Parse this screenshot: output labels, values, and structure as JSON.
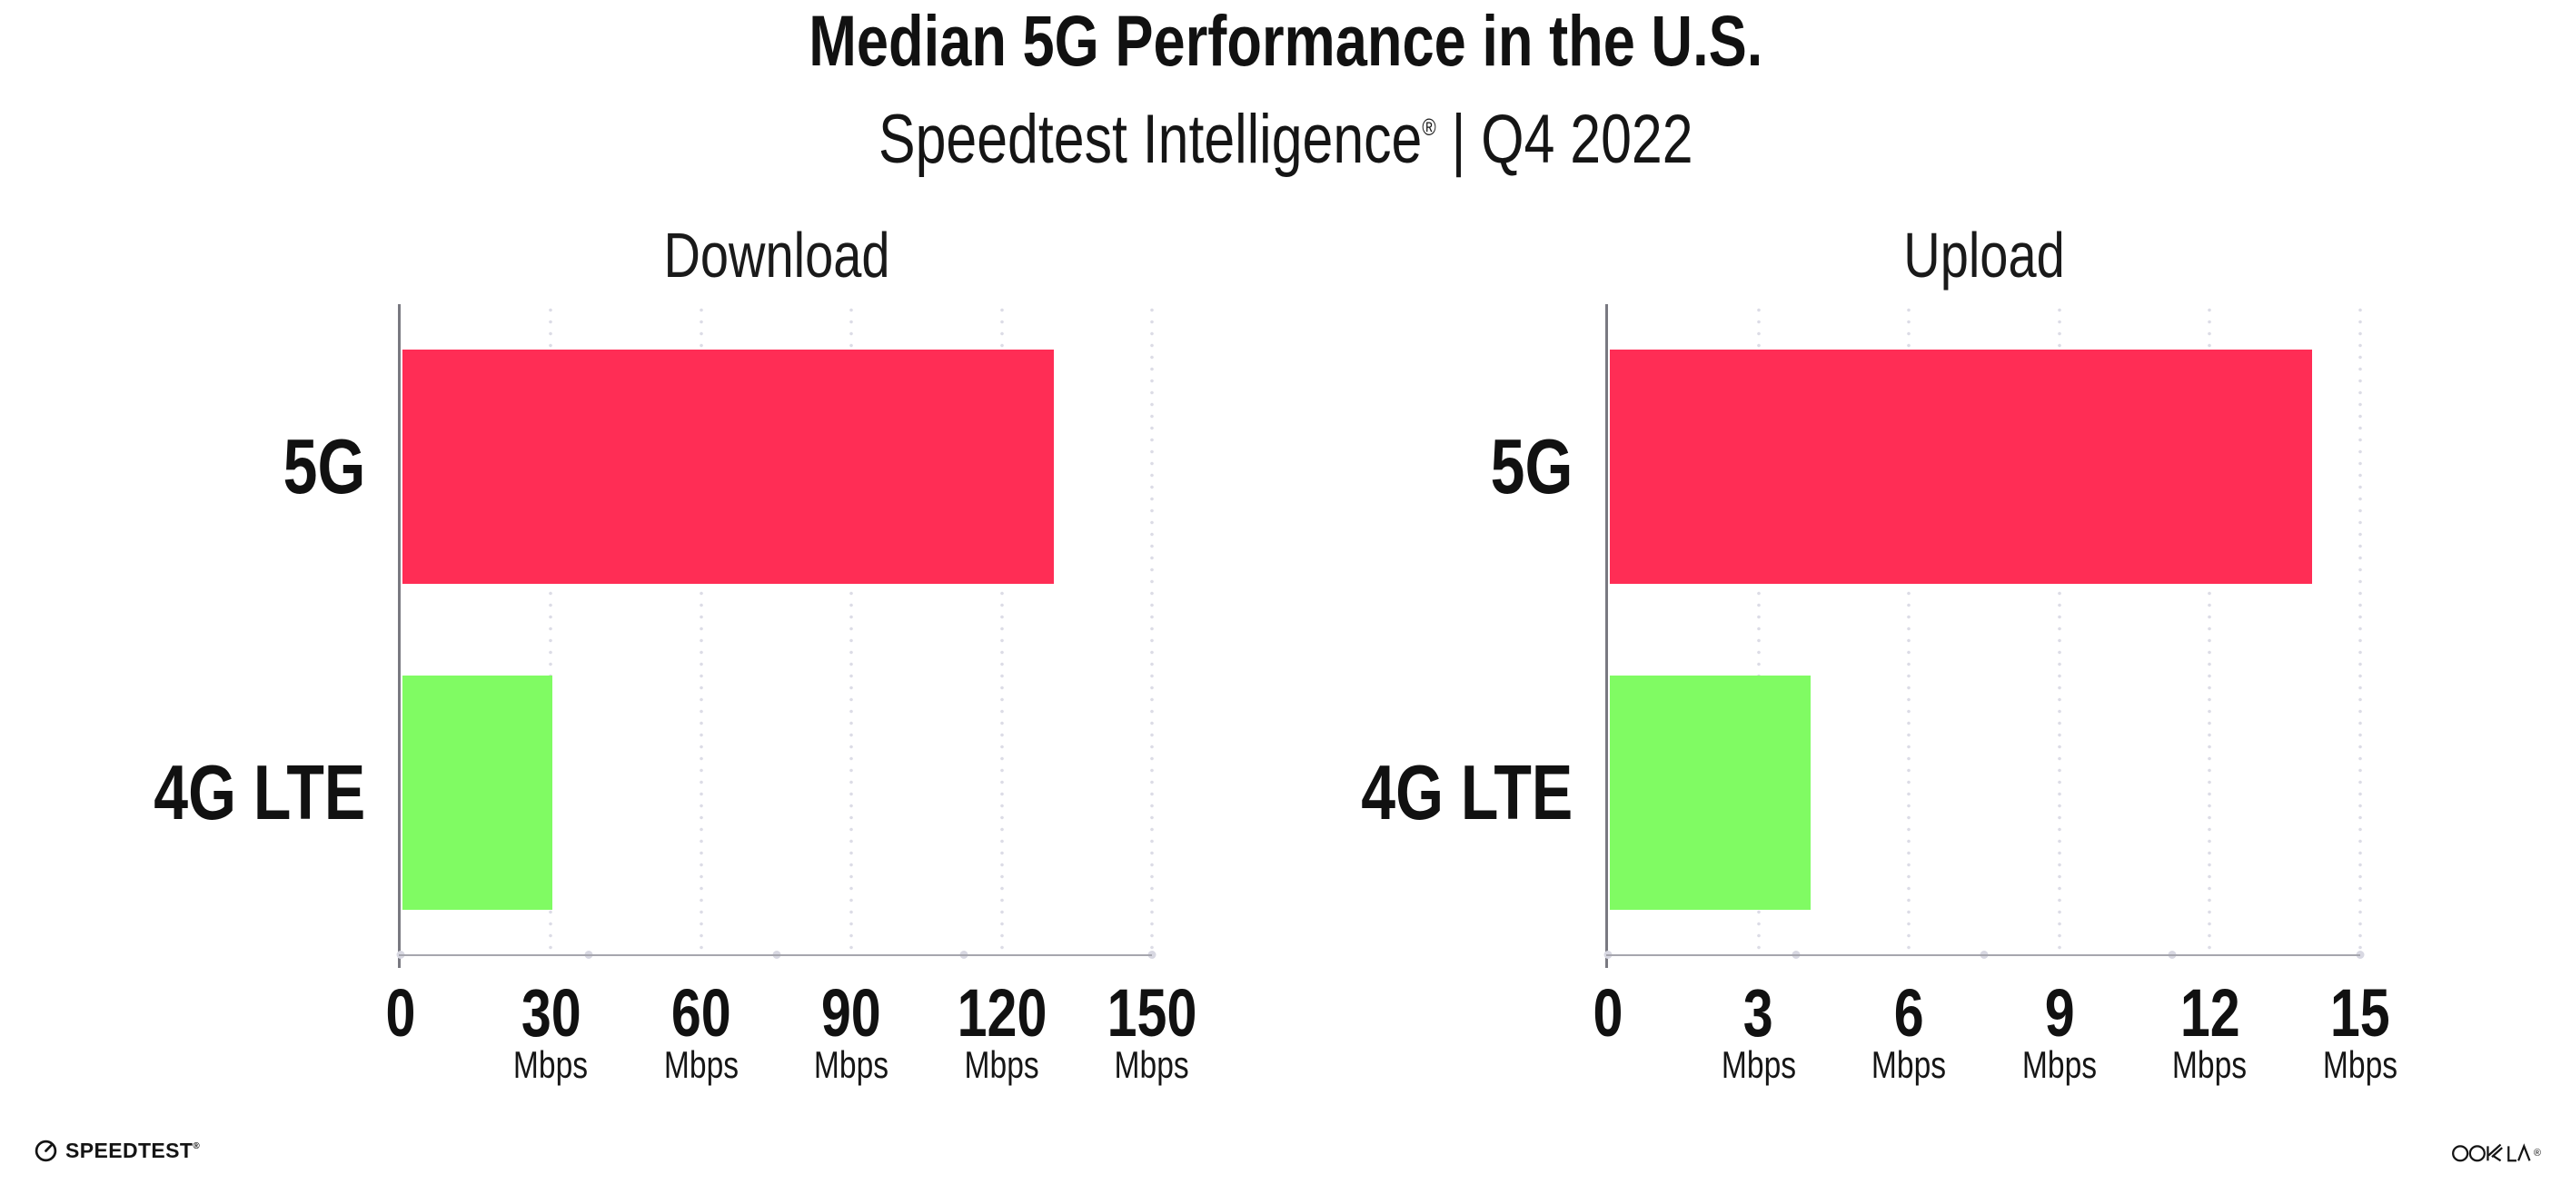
{
  "header": {
    "title": "Median 5G Performance in the U.S.",
    "subtitle_brand": "Speedtest Intelligence",
    "subtitle_reg": "®",
    "subtitle_rest": " | Q4 2022"
  },
  "chart_data": [
    {
      "type": "bar",
      "orientation": "horizontal",
      "title": "Download",
      "categories": [
        "5G",
        "4G LTE"
      ],
      "values": [
        130,
        30
      ],
      "unit": "Mbps",
      "xlabel": "",
      "ylabel": "",
      "xlim": [
        0,
        150
      ],
      "xticks": [
        0,
        30,
        60,
        90,
        120,
        150
      ],
      "bar_colors": [
        "#FF2D55",
        "#80FB63"
      ],
      "grid": "dotted-vertical",
      "legend": "none"
    },
    {
      "type": "bar",
      "orientation": "horizontal",
      "title": "Upload",
      "categories": [
        "5G",
        "4G LTE"
      ],
      "values": [
        14,
        4
      ],
      "unit": "Mbps",
      "xlabel": "",
      "ylabel": "",
      "xlim": [
        0,
        15
      ],
      "xticks": [
        0,
        3,
        6,
        9,
        12,
        15
      ],
      "bar_colors": [
        "#FF2D55",
        "#80FB63"
      ],
      "grid": "dotted-vertical",
      "legend": "none"
    }
  ],
  "colors": {
    "bar_5g": "#FF2D55",
    "bar_4g_lte": "#80FB63",
    "y_axis": "#797981",
    "x_axis": "#a6a6ae",
    "grid_dot": "#dcdce6",
    "axis_quarter_dot": "#d8d8e2",
    "text": "#111111",
    "background": "#ffffff"
  },
  "footer": {
    "speedtest_logo_text": "SPEEDTEST",
    "speedtest_reg": "®",
    "ookla_logo_text": "OOKLA",
    "ookla_reg": "®"
  }
}
